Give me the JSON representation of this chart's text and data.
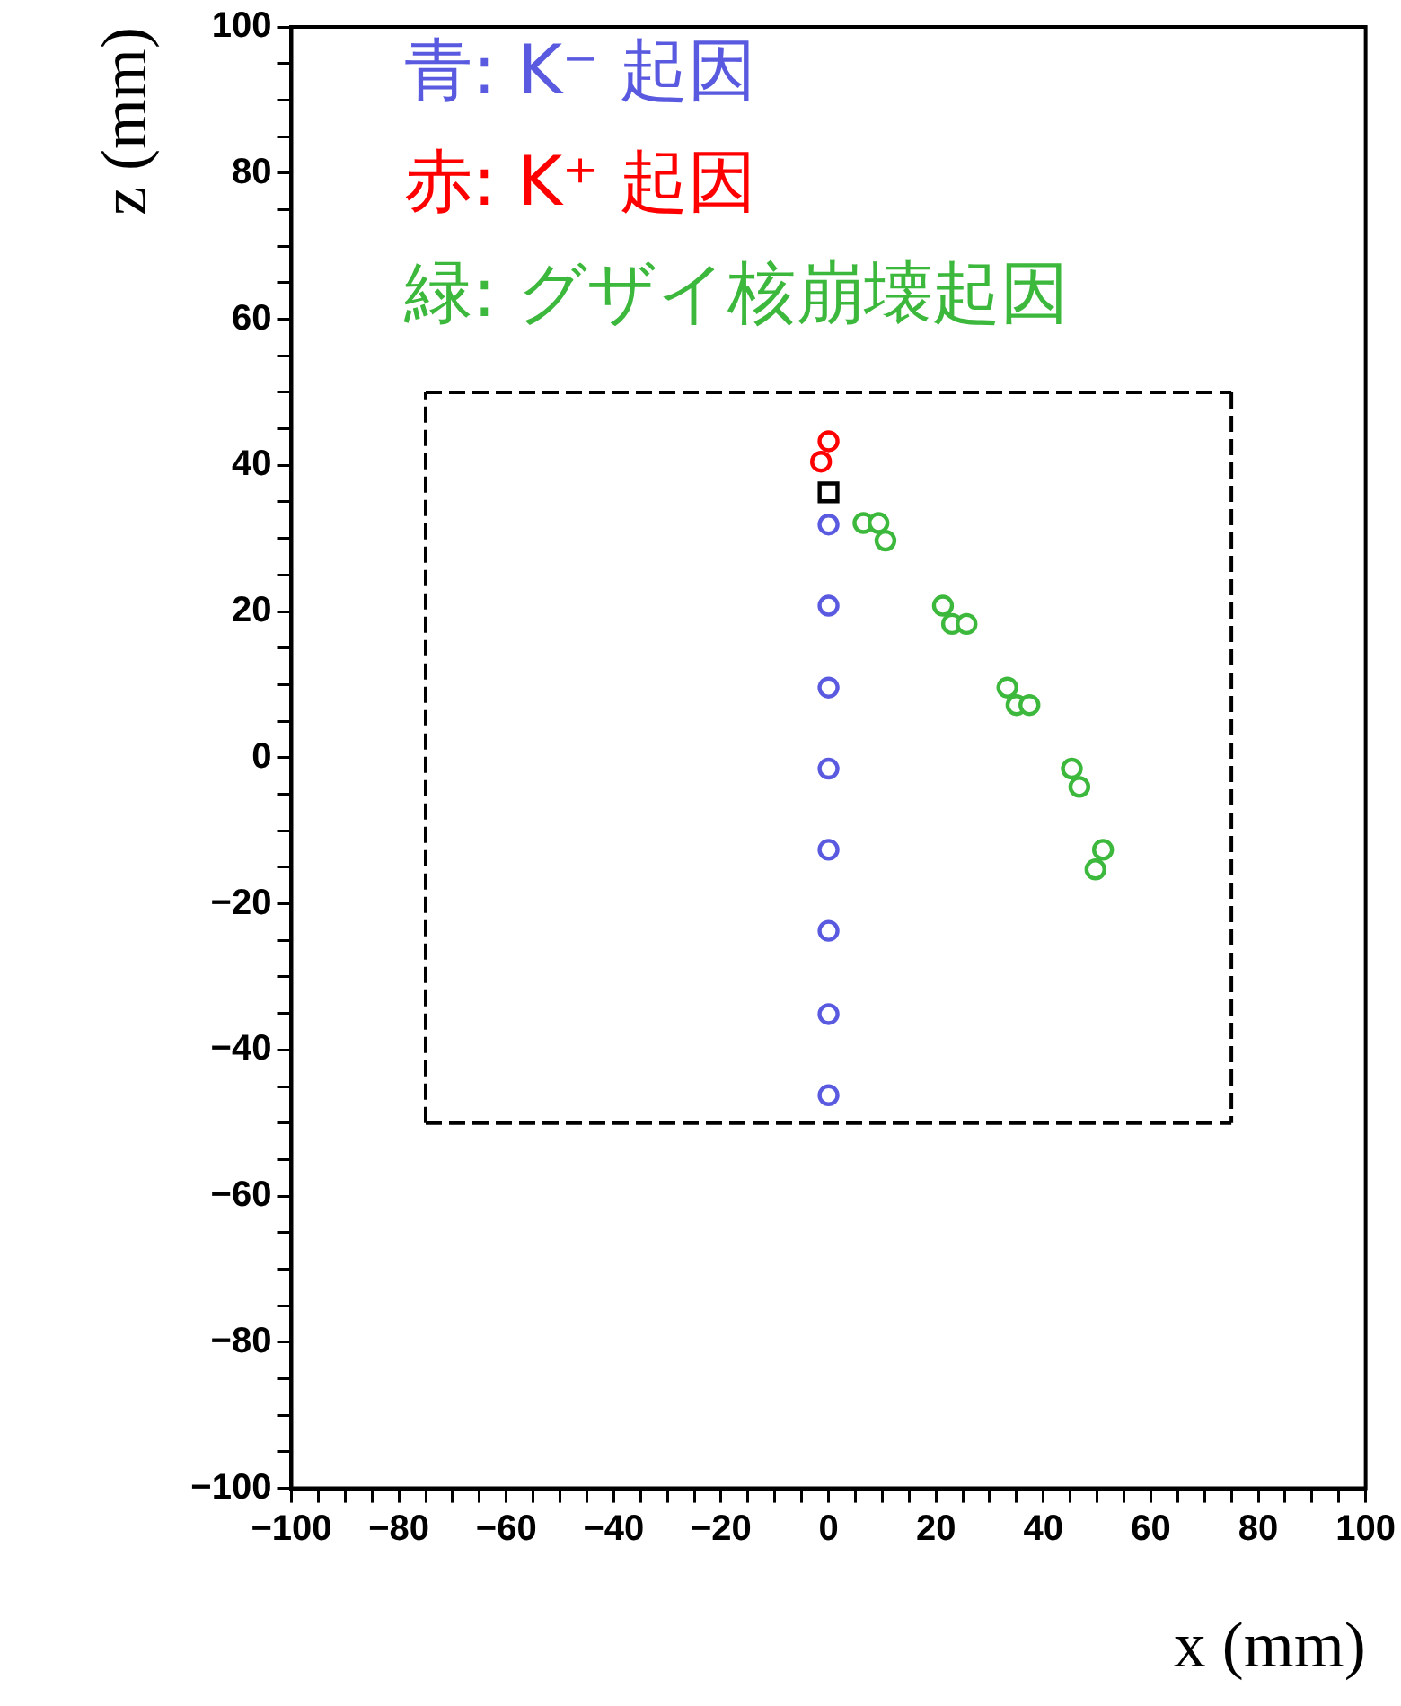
{
  "chart_data": {
    "type": "scatter",
    "xlabel": "x (mm)",
    "ylabel": "z (mm)",
    "legend": "top left",
    "grid": false,
    "xlim": [
      -100,
      100
    ],
    "ylim": [
      -100,
      100
    ],
    "xticks": [
      {
        "value": -100,
        "label": "−100"
      },
      {
        "value": -95,
        "label": null
      },
      {
        "value": -90,
        "label": null
      },
      {
        "value": -85,
        "label": null
      },
      {
        "value": -80,
        "label": "−80"
      },
      {
        "value": -75,
        "label": null
      },
      {
        "value": -70,
        "label": null
      },
      {
        "value": -65,
        "label": null
      },
      {
        "value": -60,
        "label": "−60"
      },
      {
        "value": -55,
        "label": null
      },
      {
        "value": -50,
        "label": null
      },
      {
        "value": -45,
        "label": null
      },
      {
        "value": -40,
        "label": "−40"
      },
      {
        "value": -35,
        "label": null
      },
      {
        "value": -30,
        "label": null
      },
      {
        "value": -25,
        "label": null
      },
      {
        "value": -20,
        "label": "−20"
      },
      {
        "value": -15,
        "label": null
      },
      {
        "value": -10,
        "label": null
      },
      {
        "value": -5,
        "label": null
      },
      0,
      {
        "value": 5,
        "label": null
      },
      {
        "value": 10,
        "label": null
      },
      {
        "value": 15,
        "label": null
      },
      20,
      {
        "value": 25,
        "label": null
      },
      {
        "value": 30,
        "label": null
      },
      {
        "value": 35,
        "label": null
      },
      40,
      {
        "value": 45,
        "label": null
      },
      {
        "value": 50,
        "label": null
      },
      {
        "value": 55,
        "label": null
      },
      60,
      {
        "value": 65,
        "label": null
      },
      {
        "value": 70,
        "label": null
      },
      {
        "value": 75,
        "label": null
      },
      80,
      {
        "value": 85,
        "label": null
      },
      {
        "value": 90,
        "label": null
      },
      {
        "value": 95,
        "label": null
      },
      100
    ],
    "yticks": [
      {
        "value": -100,
        "label": "−100"
      },
      {
        "value": -95,
        "label": null
      },
      {
        "value": -90,
        "label": null
      },
      {
        "value": -85,
        "label": null
      },
      {
        "value": -80,
        "label": "−80"
      },
      {
        "value": -75,
        "label": null
      },
      {
        "value": -70,
        "label": null
      },
      {
        "value": -65,
        "label": null
      },
      {
        "value": -60,
        "label": "−60"
      },
      {
        "value": -55,
        "label": null
      },
      {
        "value": -50,
        "label": null
      },
      {
        "value": -45,
        "label": null
      },
      {
        "value": -40,
        "label": "−40"
      },
      {
        "value": -35,
        "label": null
      },
      {
        "value": -30,
        "label": null
      },
      {
        "value": -25,
        "label": null
      },
      {
        "value": -20,
        "label": "−20"
      },
      {
        "value": -15,
        "label": null
      },
      {
        "value": -10,
        "label": null
      },
      {
        "value": -5,
        "label": null
      },
      0,
      {
        "value": 5,
        "label": null
      },
      {
        "value": 10,
        "label": null
      },
      {
        "value": 15,
        "label": null
      },
      20,
      {
        "value": 25,
        "label": null
      },
      {
        "value": 30,
        "label": null
      },
      {
        "value": 35,
        "label": null
      },
      40,
      {
        "value": 45,
        "label": null
      },
      {
        "value": 50,
        "label": null
      },
      {
        "value": 55,
        "label": null
      },
      60,
      {
        "value": 65,
        "label": null
      },
      {
        "value": 70,
        "label": null
      },
      {
        "value": 75,
        "label": null
      },
      80,
      {
        "value": 85,
        "label": null
      },
      {
        "value": 90,
        "label": null
      },
      {
        "value": 95,
        "label": null
      },
      100
    ],
    "series": [
      {
        "name": "青: K⁻ 起因",
        "color": "#5a5ae0",
        "marker": "circle",
        "x": [
          0,
          0,
          0,
          0,
          0,
          0,
          0,
          0
        ],
        "values": [
          31.9,
          20.8,
          9.6,
          -1.5,
          -12.6,
          -23.7,
          -35.1,
          -46.2
        ]
      },
      {
        "name": "赤: K⁺ 起因",
        "color": "#ff0000",
        "marker": "circle",
        "x": [
          -1.4,
          0
        ],
        "values": [
          40.5,
          43.3
        ]
      },
      {
        "name": "緑: グザイ核崩壊起因",
        "color": "#3cb83c",
        "marker": "circle",
        "x": [
          6.5,
          9.3,
          10.6,
          21.3,
          23,
          25.7,
          33.3,
          35,
          37.4,
          45.3,
          46.7,
          51.1,
          49.7
        ],
        "values": [
          32.1,
          32.1,
          29.7,
          20.8,
          18.3,
          18.3,
          9.6,
          7.2,
          7.2,
          -1.5,
          -4,
          -12.6,
          -15.3
        ]
      },
      {
        "color": "#000000",
        "marker": "square",
        "x": [
          0
        ],
        "values": [
          36.3
        ]
      },
      {
        "type": "line",
        "color": "#000000",
        "marker": "none",
        "line_style": "dashed",
        "x": [
          -75,
          75
        ],
        "values": [
          50,
          50
        ]
      },
      {
        "type": "line",
        "color": "#000000",
        "marker": "none",
        "line_style": "dashed",
        "x": [
          75,
          75
        ],
        "values": [
          50,
          -50
        ]
      },
      {
        "type": "line",
        "color": "#000000",
        "marker": "none",
        "line_style": "dashed",
        "x": [
          -75,
          75
        ],
        "values": [
          -50,
          -50
        ]
      },
      {
        "type": "line",
        "color": "#000000",
        "marker": "none",
        "line_style": "dashed",
        "x": [
          -75,
          -75
        ],
        "values": [
          -50,
          50
        ]
      }
    ]
  }
}
